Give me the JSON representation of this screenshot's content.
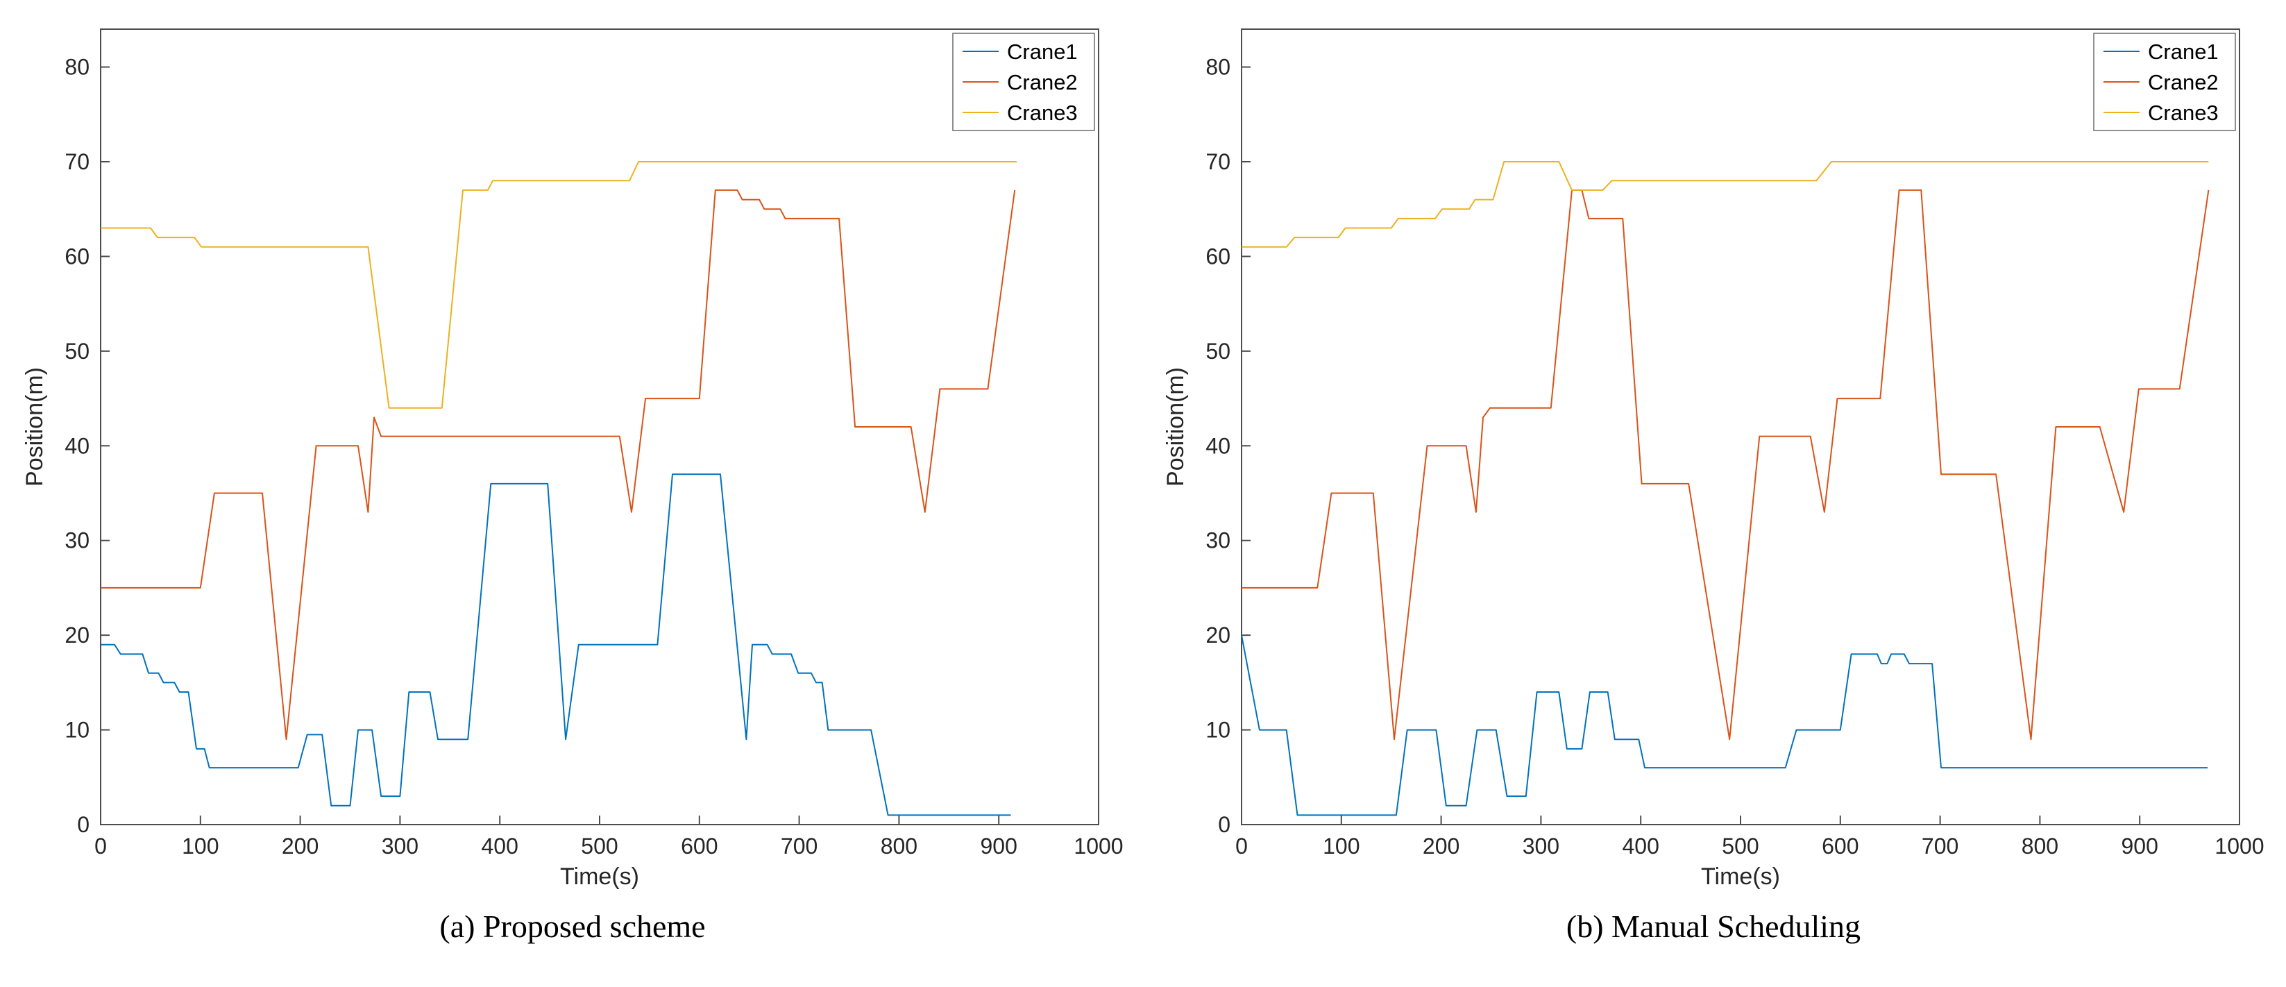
{
  "figures": [
    {
      "caption": "(a) Proposed scheme"
    },
    {
      "caption": "(b) Manual Scheduling"
    }
  ],
  "colors": {
    "crane1": "#0072BD",
    "crane2": "#D95319",
    "crane3": "#EDB120",
    "axis": "#4d4d4d",
    "text": "#262626"
  },
  "chart_data": [
    {
      "type": "line",
      "title": "",
      "xlabel": "Time(s)",
      "ylabel": "Position(m)",
      "xlim": [
        0,
        1000
      ],
      "ylim": [
        0,
        84
      ],
      "xticks": [
        0,
        100,
        200,
        300,
        400,
        500,
        600,
        700,
        800,
        900,
        1000
      ],
      "yticks": [
        0,
        10,
        20,
        30,
        40,
        50,
        60,
        70,
        80
      ],
      "grid": false,
      "legend_position": "top-right",
      "legend": [
        "Crane1",
        "Crane2",
        "Crane3"
      ],
      "series": [
        {
          "name": "Crane1",
          "color": "#0072BD",
          "points": [
            [
              0,
              19
            ],
            [
              14,
              19
            ],
            [
              20,
              18
            ],
            [
              42,
              18
            ],
            [
              48,
              16
            ],
            [
              58,
              16
            ],
            [
              63,
              15
            ],
            [
              74,
              15
            ],
            [
              79,
              14
            ],
            [
              88,
              14
            ],
            [
              96,
              8
            ],
            [
              104,
              8
            ],
            [
              109,
              6
            ],
            [
              198,
              6
            ],
            [
              207,
              9.5
            ],
            [
              222,
              9.5
            ],
            [
              231,
              2
            ],
            [
              250,
              2
            ],
            [
              258,
              10
            ],
            [
              272,
              10
            ],
            [
              281,
              3
            ],
            [
              300,
              3
            ],
            [
              309,
              14
            ],
            [
              330,
              14
            ],
            [
              338,
              9
            ],
            [
              368,
              9
            ],
            [
              391,
              36
            ],
            [
              448,
              36
            ],
            [
              466,
              9
            ],
            [
              479,
              19
            ],
            [
              558,
              19
            ],
            [
              573,
              37
            ],
            [
              621,
              37
            ],
            [
              647,
              9
            ],
            [
              653,
              19
            ],
            [
              668,
              19
            ],
            [
              673,
              18
            ],
            [
              692,
              18
            ],
            [
              699,
              16
            ],
            [
              712,
              16
            ],
            [
              717,
              15
            ],
            [
              723,
              15
            ],
            [
              729,
              10
            ],
            [
              772,
              10
            ],
            [
              789,
              1
            ],
            [
              912,
              1
            ]
          ]
        },
        {
          "name": "Crane2",
          "color": "#D95319",
          "points": [
            [
              0,
              25
            ],
            [
              100,
              25
            ],
            [
              114,
              35
            ],
            [
              162,
              35
            ],
            [
              186,
              9
            ],
            [
              216,
              40
            ],
            [
              258,
              40
            ],
            [
              268,
              33
            ],
            [
              274,
              43
            ],
            [
              281,
              41
            ],
            [
              520,
              41
            ],
            [
              532,
              33
            ],
            [
              546,
              45
            ],
            [
              600,
              45
            ],
            [
              616,
              67
            ],
            [
              638,
              67
            ],
            [
              643,
              66
            ],
            [
              660,
              66
            ],
            [
              665,
              65
            ],
            [
              681,
              65
            ],
            [
              686,
              64
            ],
            [
              740,
              64
            ],
            [
              756,
              42
            ],
            [
              812,
              42
            ],
            [
              826,
              33
            ],
            [
              841,
              46
            ],
            [
              889,
              46
            ],
            [
              916,
              67
            ]
          ]
        },
        {
          "name": "Crane3",
          "color": "#EDB120",
          "points": [
            [
              0,
              63
            ],
            [
              50,
              63
            ],
            [
              57,
              62
            ],
            [
              94,
              62
            ],
            [
              101,
              61
            ],
            [
              268,
              61
            ],
            [
              289,
              44
            ],
            [
              342,
              44
            ],
            [
              363,
              67
            ],
            [
              388,
              67
            ],
            [
              393,
              68
            ],
            [
              530,
              68
            ],
            [
              539,
              70
            ],
            [
              918,
              70
            ]
          ]
        }
      ]
    },
    {
      "type": "line",
      "title": "",
      "xlabel": "Time(s)",
      "ylabel": "Position(m)",
      "xlim": [
        0,
        1000
      ],
      "ylim": [
        0,
        84
      ],
      "xticks": [
        0,
        100,
        200,
        300,
        400,
        500,
        600,
        700,
        800,
        900,
        1000
      ],
      "yticks": [
        0,
        10,
        20,
        30,
        40,
        50,
        60,
        70,
        80
      ],
      "grid": false,
      "legend_position": "top-right",
      "legend": [
        "Crane1",
        "Crane2",
        "Crane3"
      ],
      "series": [
        {
          "name": "Crane1",
          "color": "#0072BD",
          "points": [
            [
              0,
              20
            ],
            [
              18,
              10
            ],
            [
              45,
              10
            ],
            [
              56,
              1
            ],
            [
              155,
              1
            ],
            [
              166,
              10
            ],
            [
              195,
              10
            ],
            [
              205,
              2
            ],
            [
              225,
              2
            ],
            [
              236,
              10
            ],
            [
              255,
              10
            ],
            [
              266,
              3
            ],
            [
              285,
              3
            ],
            [
              296,
              14
            ],
            [
              318,
              14
            ],
            [
              326,
              8
            ],
            [
              341,
              8
            ],
            [
              349,
              14
            ],
            [
              367,
              14
            ],
            [
              374,
              9
            ],
            [
              398,
              9
            ],
            [
              404,
              6
            ],
            [
              545,
              6
            ],
            [
              556,
              10
            ],
            [
              600,
              10
            ],
            [
              611,
              18
            ],
            [
              637,
              18
            ],
            [
              641,
              17
            ],
            [
              647,
              17
            ],
            [
              651,
              18
            ],
            [
              664,
              18
            ],
            [
              669,
              17
            ],
            [
              692,
              17
            ],
            [
              701,
              6
            ],
            [
              968,
              6
            ]
          ]
        },
        {
          "name": "Crane2",
          "color": "#D95319",
          "points": [
            [
              0,
              25
            ],
            [
              76,
              25
            ],
            [
              90,
              35
            ],
            [
              132,
              35
            ],
            [
              153,
              9
            ],
            [
              186,
              40
            ],
            [
              225,
              40
            ],
            [
              235,
              33
            ],
            [
              242,
              43
            ],
            [
              249,
              44
            ],
            [
              310,
              44
            ],
            [
              331,
              67
            ],
            [
              341,
              67
            ],
            [
              348,
              64
            ],
            [
              382,
              64
            ],
            [
              401,
              36
            ],
            [
              448,
              36
            ],
            [
              489,
              9
            ],
            [
              519,
              41
            ],
            [
              570,
              41
            ],
            [
              584,
              33
            ],
            [
              597,
              45
            ],
            [
              640,
              45
            ],
            [
              659,
              67
            ],
            [
              681,
              67
            ],
            [
              701,
              37
            ],
            [
              756,
              37
            ],
            [
              791,
              9
            ],
            [
              816,
              42
            ],
            [
              860,
              42
            ],
            [
              884,
              33
            ],
            [
              899,
              46
            ],
            [
              940,
              46
            ],
            [
              969,
              67
            ]
          ]
        },
        {
          "name": "Crane3",
          "color": "#EDB120",
          "points": [
            [
              0,
              61
            ],
            [
              45,
              61
            ],
            [
              53,
              62
            ],
            [
              97,
              62
            ],
            [
              104,
              63
            ],
            [
              150,
              63
            ],
            [
              157,
              64
            ],
            [
              194,
              64
            ],
            [
              201,
              65
            ],
            [
              228,
              65
            ],
            [
              234,
              66
            ],
            [
              252,
              66
            ],
            [
              263,
              70
            ],
            [
              318,
              70
            ],
            [
              331,
              67
            ],
            [
              362,
              67
            ],
            [
              371,
              68
            ],
            [
              576,
              68
            ],
            [
              591,
              70
            ],
            [
              969,
              70
            ]
          ]
        }
      ]
    }
  ]
}
